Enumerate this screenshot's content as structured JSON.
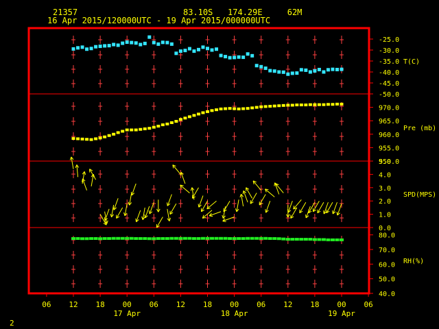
{
  "header": {
    "station_id": "21357",
    "location": "83.10S   174.29E     62M",
    "period": "16 Apr 2015/120000UTC - 19 Apr 2015/000000UTC"
  },
  "page_number": "2",
  "colors": {
    "frame": "#ff0000",
    "grid_tick": "#ff4040",
    "text": "#ffff00",
    "temperature": "#33e5ff",
    "pressure": "#ffff00",
    "wind": "#ffff00",
    "humidity": "#22ee22"
  },
  "chart_data": [
    {
      "type": "scatter",
      "panel": "temperature",
      "ylabel": "T(C)",
      "ylim": [
        -50,
        -20
      ],
      "yticks": [
        -25,
        -30,
        -35,
        -40,
        -45,
        -50
      ],
      "ytick_labels": [
        "-25.0",
        "-30.0",
        "-35.0",
        "-40.0",
        "-45.0",
        "-50.0"
      ],
      "x_unit": "hours since 16 Apr 2015 12 UTC",
      "x": [
        0,
        1,
        2,
        3,
        4,
        5,
        6,
        7,
        8,
        9,
        10,
        11,
        12,
        13,
        14,
        15,
        16,
        17,
        18,
        19,
        20,
        21,
        22,
        23,
        24,
        25,
        26,
        27,
        28,
        29,
        30,
        31,
        32,
        33,
        34,
        35,
        36,
        37,
        38,
        39,
        40,
        41,
        42,
        43,
        44,
        45,
        46,
        47,
        48,
        49,
        50,
        51,
        52,
        53,
        54,
        55,
        56,
        57,
        58,
        59,
        60
      ],
      "y": [
        -29.5,
        -29,
        -28.7,
        -29.6,
        -29.3,
        -28.5,
        -28.3,
        -28.1,
        -28,
        -27.5,
        -27.8,
        -26.9,
        -26.4,
        -26.6,
        -26.8,
        -27.5,
        -27,
        -24.1,
        -26.6,
        -27.3,
        -26.5,
        -26.6,
        -27.3,
        -31.5,
        -30.5,
        -30.2,
        -29.4,
        -30.5,
        -29.8,
        -28.7,
        -29.3,
        -30,
        -29.6,
        -32.5,
        -33,
        -33.5,
        -33.4,
        -33.2,
        -33.3,
        -31.8,
        -32.6,
        -37.1,
        -37.6,
        -38.3,
        -39.4,
        -39.6,
        -40,
        -40.1,
        -41,
        -40.6,
        -40.5,
        -39,
        -39.2,
        -40,
        -39.5,
        -38.9,
        -40,
        -39,
        -38.8,
        -38.9,
        -38.8
      ]
    },
    {
      "type": "scatter",
      "panel": "pressure",
      "ylabel": "Pre (mb)",
      "ylim": [
        950,
        975
      ],
      "yticks": [
        950,
        955,
        960,
        965,
        970
      ],
      "ytick_labels": [
        "950.0",
        "955.0",
        "960.0",
        "965.0",
        "970.0"
      ],
      "x": [
        0,
        1,
        2,
        3,
        4,
        5,
        6,
        7,
        8,
        9,
        10,
        11,
        12,
        13,
        14,
        15,
        16,
        17,
        18,
        19,
        20,
        21,
        22,
        23,
        24,
        25,
        26,
        27,
        28,
        29,
        30,
        31,
        32,
        33,
        34,
        35,
        36,
        37,
        38,
        39,
        40,
        41,
        42,
        43,
        44,
        45,
        46,
        47,
        48,
        49,
        50,
        51,
        52,
        53,
        54,
        55,
        56,
        57,
        58,
        59,
        60
      ],
      "y": [
        958.4,
        958.3,
        958.2,
        958.1,
        958.0,
        958.3,
        958.6,
        959.0,
        959.5,
        960.0,
        960.6,
        961.1,
        961.6,
        961.6,
        961.6,
        961.8,
        962.0,
        962.2,
        962.6,
        963.0,
        963.5,
        963.8,
        964.3,
        964.8,
        965.5,
        966.0,
        966.5,
        967.0,
        967.5,
        968.0,
        968.4,
        968.8,
        969.1,
        969.4,
        969.5,
        969.6,
        969.5,
        969.4,
        969.5,
        969.6,
        969.8,
        970.0,
        970.2,
        970.3,
        970.4,
        970.5,
        970.6,
        970.7,
        970.8,
        970.8,
        970.9,
        970.9,
        970.9,
        971.0,
        971.0,
        971.0,
        971.0,
        971.1,
        971.1,
        971.2,
        971.2
      ]
    },
    {
      "type": "scatter",
      "panel": "wind",
      "ylabel": "SPD(MPS)",
      "ylim": [
        0,
        5
      ],
      "yticks": [
        0,
        1,
        2,
        3,
        4,
        5
      ],
      "ytick_labels": [
        "0.0",
        "1.0",
        "2.0",
        "3.0",
        "4.0",
        "5.0"
      ],
      "x": [
        0,
        1,
        2,
        3,
        4,
        5,
        6,
        7,
        8,
        9,
        10,
        11,
        12,
        13,
        14,
        15,
        16,
        17,
        18,
        19,
        20,
        21,
        22,
        23,
        24,
        25,
        26,
        27,
        28,
        29,
        30,
        31,
        32,
        33,
        34,
        35,
        36,
        37,
        38,
        39,
        40,
        41,
        42,
        43,
        44,
        45,
        46,
        47,
        48,
        49,
        50,
        51,
        52,
        53,
        54,
        55,
        56,
        57,
        58,
        59,
        60
      ],
      "speed": [
        4.4,
        3.8,
        3.3,
        2.8,
        3.1,
        3.6,
        1.0,
        1.2,
        1.4,
        1.7,
        2.2,
        1.5,
        1.8,
        2.6,
        3.3,
        1.3,
        1.5,
        1.6,
        1.9,
        2.1,
        0.8,
        1.4,
        2.5,
        1.8,
        4.0,
        3.3,
        2.6,
        2.1,
        3.0,
        2.4,
        2.0,
        1.3,
        2.0,
        1.2,
        1.6,
        2.0,
        0.8,
        2.1,
        1.6,
        1.9,
        2.2,
        2.6,
        2.8,
        2.5,
        2.0,
        2.3,
        2.5,
        2.6,
        1.7,
        2.0,
        1.5,
        2.1,
        1.9,
        1.6,
        1.9,
        2.0,
        1.9,
        1.9,
        1.9,
        1.9,
        1.8
      ],
      "dir_deg": [
        100,
        95,
        80,
        110,
        80,
        120,
        300,
        280,
        250,
        260,
        250,
        240,
        260,
        260,
        250,
        250,
        260,
        250,
        250,
        270,
        240,
        280,
        250,
        240,
        130,
        110,
        140,
        100,
        240,
        250,
        240,
        220,
        220,
        200,
        260,
        240,
        200,
        260,
        100,
        110,
        120,
        240,
        130,
        240,
        250,
        140,
        110,
        130,
        270,
        250,
        240,
        230,
        240,
        250,
        240,
        240,
        240,
        250,
        240,
        250,
        250
      ]
    },
    {
      "type": "scatter",
      "panel": "humidity",
      "ylabel": "RH(%)",
      "ylim": [
        40,
        85
      ],
      "yticks": [
        40,
        50,
        60,
        70,
        80
      ],
      "ytick_labels": [
        "40.0",
        "50.0",
        "60.0",
        "70.0",
        "80.0"
      ],
      "x": [
        0,
        1,
        2,
        3,
        4,
        5,
        6,
        7,
        8,
        9,
        10,
        11,
        12,
        13,
        14,
        15,
        16,
        17,
        18,
        19,
        20,
        21,
        22,
        23,
        24,
        25,
        26,
        27,
        28,
        29,
        30,
        31,
        32,
        33,
        34,
        35,
        36,
        37,
        38,
        39,
        40,
        41,
        42,
        43,
        44,
        45,
        46,
        47,
        48,
        49,
        50,
        51,
        52,
        53,
        54,
        55,
        56,
        57,
        58,
        59,
        60
      ],
      "y": [
        77.5,
        77.5,
        77.4,
        77.4,
        77.5,
        77.5,
        77.4,
        77.5,
        77.5,
        77.6,
        77.6,
        77.6,
        77.6,
        77.6,
        77.5,
        77.5,
        77.5,
        77.4,
        77.4,
        77.5,
        77.5,
        77.5,
        77.6,
        77.6,
        77.6,
        77.6,
        77.6,
        77.5,
        77.5,
        77.6,
        77.6,
        77.6,
        77.6,
        77.6,
        77.6,
        77.5,
        77.5,
        77.5,
        77.5,
        77.6,
        77.6,
        77.6,
        77.6,
        77.6,
        77.5,
        77.5,
        77.4,
        77.2,
        77.0,
        77.0,
        77.0,
        77.0,
        77.0,
        77.0,
        76.8,
        76.8,
        76.8,
        76.6,
        76.6,
        76.6,
        76.6
      ]
    }
  ],
  "x_axis": {
    "tick_hours": [
      -6,
      0,
      6,
      12,
      18,
      24,
      30,
      36,
      42,
      48,
      54,
      60,
      66
    ],
    "tick_labels": [
      "06",
      "12",
      "18",
      "00",
      "06",
      "12",
      "18",
      "00",
      "06",
      "12",
      "18",
      "00",
      "06"
    ],
    "dates": [
      {
        "hour": 12,
        "label": "17 Apr"
      },
      {
        "hour": 36,
        "label": "18 Apr"
      },
      {
        "hour": 60,
        "label": "19 Apr"
      }
    ]
  }
}
